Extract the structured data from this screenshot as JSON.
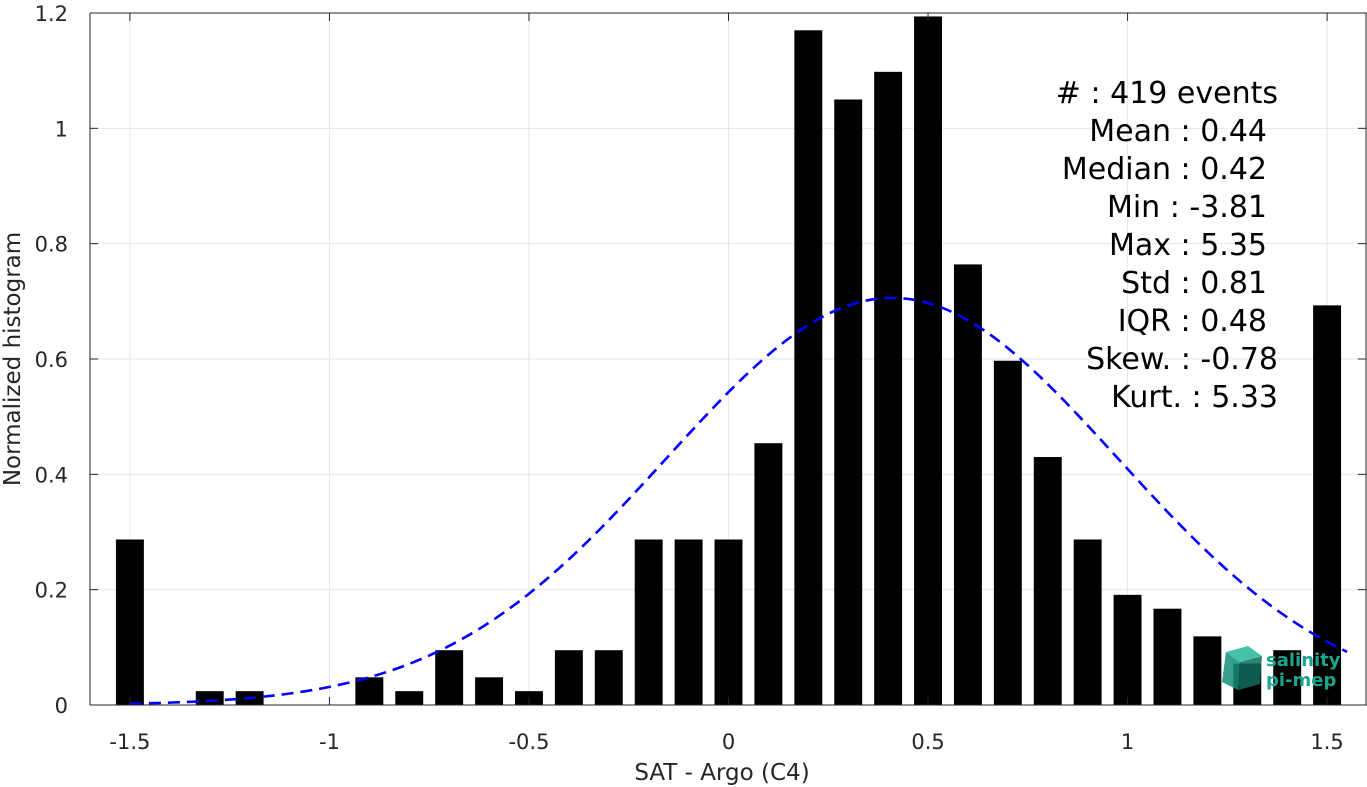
{
  "chart_data": {
    "type": "bar",
    "title": "",
    "xlabel": "SAT - Argo (C4)",
    "ylabel": "Normalized histogram",
    "xlim": [
      -1.6,
      1.6
    ],
    "ylim": [
      0,
      1.2
    ],
    "xticks": [
      -1.5,
      -1,
      -0.5,
      0,
      0.5,
      1,
      1.5
    ],
    "xtick_labels": [
      "-1.5",
      "-1",
      "-0.5",
      "0",
      "0.5",
      "1",
      "1.5"
    ],
    "yticks": [
      0,
      0.2,
      0.4,
      0.6,
      0.8,
      1,
      1.2
    ],
    "ytick_labels": [
      "0",
      "0.2",
      "0.4",
      "0.6",
      "0.8",
      "1",
      "1.2"
    ],
    "grid": true,
    "bar_color": "#000000",
    "bar_width": 0.07,
    "bars": {
      "x": [
        -1.5,
        -1.4,
        -1.3,
        -1.2,
        -1.1,
        -1.0,
        -0.9,
        -0.8,
        -0.7,
        -0.6,
        -0.5,
        -0.4,
        -0.3,
        -0.2,
        -0.1,
        0.0,
        0.1,
        0.2,
        0.3,
        0.4,
        0.5,
        0.6,
        0.7,
        0.8,
        0.9,
        1.0,
        1.1,
        1.2,
        1.3,
        1.4,
        1.5
      ],
      "values": [
        0.287,
        0,
        0.024,
        0.024,
        0,
        0,
        0.048,
        0.024,
        0.095,
        0.048,
        0.024,
        0.095,
        0.095,
        0.287,
        0.287,
        0.287,
        0.454,
        1.17,
        1.05,
        1.098,
        1.194,
        0.764,
        0.597,
        0.43,
        0.287,
        0.191,
        0.167,
        0.119,
        0.072,
        0.095,
        0.693
      ]
    },
    "fit_curve": {
      "type": "gaussian",
      "mean": 0.41,
      "std": 0.565,
      "peak": 0.706,
      "x_range": [
        -1.5,
        1.55
      ],
      "color": "#0000ff",
      "style": "dashed"
    },
    "stats_lines": [
      {
        "label": "#  ",
        "value": ": 419 events"
      },
      {
        "label": "Mean ",
        "value": ": 0.44"
      },
      {
        "label": "Median ",
        "value": ": 0.42"
      },
      {
        "label": "Min ",
        "value": ": -3.81"
      },
      {
        "label": "Max ",
        "value": ": 5.35"
      },
      {
        "label": "Std ",
        "value": ": 0.81"
      },
      {
        "label": "IQR ",
        "value": ": 0.48"
      },
      {
        "label": "Skew. ",
        "value": ": -0.78"
      },
      {
        "label": "Kurt. ",
        "value": ": 5.33"
      }
    ]
  },
  "logo": {
    "line1": "salinity",
    "line2": "pi-mep",
    "color": "#1aa58c",
    "icon": "cube-logo-icon"
  }
}
